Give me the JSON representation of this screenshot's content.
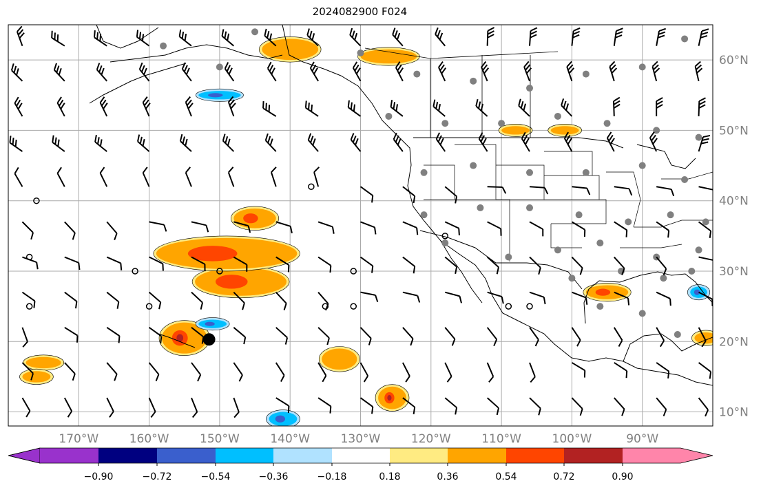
{
  "title": "2024082900 F024",
  "map": {
    "lon_min": -180,
    "lon_max": -80,
    "lat_min": 8,
    "lat_max": 65,
    "gridline_color": "#aaaaaa",
    "land_outline_color": "#000000",
    "lon_ticks": [
      {
        "lon": -170,
        "label": "170°W"
      },
      {
        "lon": -160,
        "label": "160°W"
      },
      {
        "lon": -150,
        "label": "150°W"
      },
      {
        "lon": -140,
        "label": "140°W"
      },
      {
        "lon": -130,
        "label": "130°W"
      },
      {
        "lon": -120,
        "label": "120°W"
      },
      {
        "lon": -110,
        "label": "110°W"
      },
      {
        "lon": -100,
        "label": "100°W"
      },
      {
        "lon": -90,
        "label": "90°W"
      }
    ],
    "lat_ticks": [
      {
        "lat": 60,
        "label": "60°N"
      },
      {
        "lat": 50,
        "label": "50°N"
      },
      {
        "lat": 40,
        "label": "40°N"
      },
      {
        "lat": 30,
        "label": "30°N"
      },
      {
        "lat": 20,
        "label": "20°N"
      },
      {
        "lat": 10,
        "label": "10°N"
      }
    ],
    "tick_label_color": "#808080"
  },
  "colorbar": {
    "ticks": [
      "−0.90",
      "−0.72",
      "−0.54",
      "−0.36",
      "−0.18",
      "0.18",
      "0.36",
      "0.54",
      "0.72",
      "0.90"
    ],
    "under_color": "#9932cc",
    "over_color": "#ff85aa",
    "colors": [
      "#000080",
      "#3a5fcd",
      "#00bfff",
      "#b0e2ff",
      "#ffffff",
      "#ffffff",
      "#ffeb82",
      "#ffa500",
      "#ff4500",
      "#b22222"
    ]
  },
  "field_patches": [
    {
      "lon": -155,
      "lat": 20.5,
      "rx": 3.2,
      "ry": 2.2,
      "level": "0.72"
    },
    {
      "lon": -147,
      "lat": 28.5,
      "rx": 6.5,
      "ry": 2.0,
      "level": "0.54"
    },
    {
      "lon": -149,
      "lat": 32.5,
      "rx": 10,
      "ry": 2.2,
      "level": "0.54"
    },
    {
      "lon": -145,
      "lat": 37.5,
      "rx": 3,
      "ry": 1.4,
      "level": "0.54"
    },
    {
      "lon": -125.5,
      "lat": 12.0,
      "rx": 2,
      "ry": 1.6,
      "level": "0.72"
    },
    {
      "lon": -133,
      "lat": 17.5,
      "rx": 2.5,
      "ry": 1.5,
      "level": "0.36"
    },
    {
      "lon": -140,
      "lat": 61.5,
      "rx": 4,
      "ry": 1.5,
      "level": "0.36"
    },
    {
      "lon": -126,
      "lat": 60.5,
      "rx": 4,
      "ry": 1.0,
      "level": "0.36"
    },
    {
      "lon": -95,
      "lat": 27.0,
      "rx": 3,
      "ry": 1.0,
      "level": "0.54"
    },
    {
      "lon": -175,
      "lat": 17.0,
      "rx": 2.5,
      "ry": 0.8,
      "level": "0.36"
    },
    {
      "lon": -150,
      "lat": 55.0,
      "rx": 3,
      "ry": 0.6,
      "level": "-0.54"
    },
    {
      "lon": -141,
      "lat": 9.0,
      "rx": 2,
      "ry": 1.0,
      "level": "-0.54"
    },
    {
      "lon": -151,
      "lat": 22.5,
      "rx": 2,
      "ry": 0.6,
      "level": "-0.54"
    },
    {
      "lon": -108,
      "lat": 50.0,
      "rx": 2,
      "ry": 0.6,
      "level": "0.36"
    },
    {
      "lon": -101,
      "lat": 50.0,
      "rx": 2,
      "ry": 0.6,
      "level": "0.36"
    },
    {
      "lon": -81,
      "lat": 20.5,
      "rx": 1.6,
      "ry": 0.8,
      "level": "0.36"
    },
    {
      "lon": -176,
      "lat": 15.0,
      "rx": 2,
      "ry": 0.8,
      "level": "0.36"
    },
    {
      "lon": -82,
      "lat": 27.0,
      "rx": 1.2,
      "ry": 0.8,
      "level": "-0.54"
    }
  ],
  "storm_center": {
    "lon": -151.5,
    "lat": 20.3
  }
}
